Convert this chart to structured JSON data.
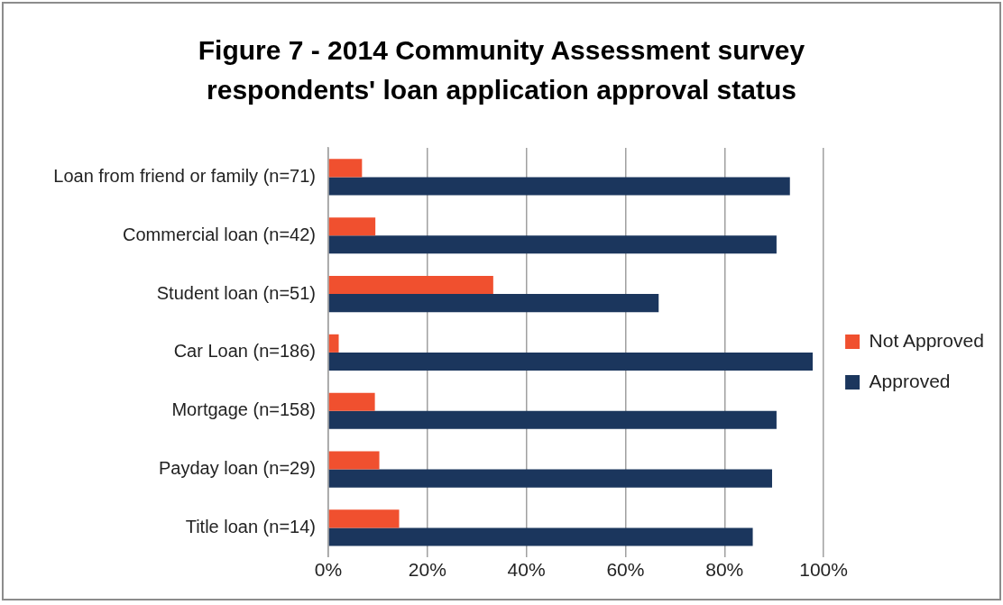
{
  "chart_data": {
    "type": "bar",
    "orientation": "horizontal",
    "title": "Figure 7 - 2014 Community Assessment survey respondents' loan application approval status",
    "categories": [
      "Loan from friend or family (n=71)",
      "Commercial loan (n=42)",
      "Student loan (n=51)",
      "Car Loan (n=186)",
      "Mortgage (n=158)",
      "Payday loan (n=29)",
      "Title loan (n=14)"
    ],
    "series": [
      {
        "name": "Not Approved",
        "color": "#f0502f",
        "values": [
          6.8,
          9.5,
          33.3,
          2.1,
          9.4,
          10.3,
          14.3
        ]
      },
      {
        "name": "Approved",
        "color": "#1b365d",
        "values": [
          93.2,
          90.5,
          66.7,
          97.8,
          90.5,
          89.6,
          85.7
        ]
      }
    ],
    "xlim": [
      0,
      100
    ],
    "xticks": [
      {
        "value": 0,
        "label": "0%"
      },
      {
        "value": 20,
        "label": "20%"
      },
      {
        "value": 40,
        "label": "40%"
      },
      {
        "value": 60,
        "label": "60%"
      },
      {
        "value": 80,
        "label": "80%"
      },
      {
        "value": 100,
        "label": "100%"
      }
    ],
    "grid": "x",
    "legend": "right"
  }
}
